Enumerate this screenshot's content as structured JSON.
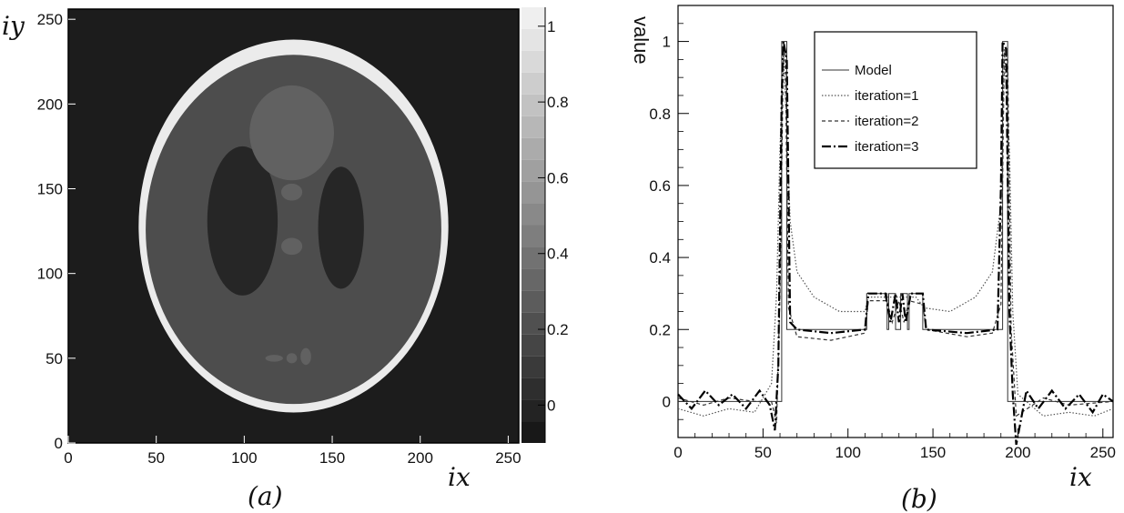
{
  "chart_data": [
    {
      "type": "heatmap",
      "panel_label": "(a)",
      "xlabel": "ix",
      "ylabel": "iy",
      "xlim": [
        0,
        256
      ],
      "ylim": [
        0,
        256
      ],
      "x_ticks": [
        "0",
        "50",
        "100",
        "150",
        "200",
        "250"
      ],
      "y_ticks": [
        "0",
        "50",
        "100",
        "150",
        "200",
        "250"
      ],
      "colorbar": {
        "range": [
          -0.1,
          1.05
        ],
        "ticks": [
          "0",
          "0.2",
          "0.4",
          "0.6",
          "0.8",
          "1"
        ],
        "levels": 20
      },
      "colormap": "grayscale",
      "features": [
        {
          "name": "outer ellipse (skull)",
          "center": [
            128,
            128
          ],
          "semi_axes": [
            88,
            110
          ],
          "value": 1.0
        },
        {
          "name": "brain interior",
          "center": [
            128,
            126
          ],
          "semi_axes": [
            84,
            103
          ],
          "value": 0.2
        },
        {
          "name": "left ellipse",
          "center": [
            99,
            131
          ],
          "semi_axes": [
            20,
            44
          ],
          "value": 0.0
        },
        {
          "name": "right ellipse",
          "center": [
            155,
            127
          ],
          "semi_axes": [
            13,
            36
          ],
          "value": 0.0
        },
        {
          "name": "top disc",
          "center": [
            127,
            183
          ],
          "semi_axes": [
            24,
            28
          ],
          "value": 0.3
        },
        {
          "name": "small spot 1",
          "center": [
            127,
            148
          ],
          "semi_axes": [
            6,
            5
          ],
          "value": 0.3
        },
        {
          "name": "small spot 2",
          "center": [
            127,
            116
          ],
          "semi_axes": [
            6,
            5
          ],
          "value": 0.3
        },
        {
          "name": "bottom spot 1",
          "center": [
            117,
            50
          ],
          "semi_axes": [
            5,
            2
          ],
          "value": 0.3
        },
        {
          "name": "bottom spot 2",
          "center": [
            127,
            50
          ],
          "semi_axes": [
            3,
            3
          ],
          "value": 0.3
        },
        {
          "name": "bottom spot 3",
          "center": [
            135,
            51
          ],
          "semi_axes": [
            3,
            5
          ],
          "value": 0.3
        }
      ]
    },
    {
      "type": "line",
      "panel_label": "(b)",
      "xlabel": "ix",
      "ylabel": "value",
      "xlim": [
        0,
        256
      ],
      "ylim": [
        -0.1,
        1.1
      ],
      "x_ticks": [
        "0",
        "50",
        "100",
        "150",
        "200",
        "250"
      ],
      "y_ticks": [
        "0",
        "0.2",
        "0.4",
        "0.6",
        "0.8",
        "1"
      ],
      "legend_position": "top-center",
      "series": [
        {
          "name": "Model",
          "style": "solid-thin",
          "points": [
            [
              0,
              0
            ],
            [
              61,
              0
            ],
            [
              61,
              1
            ],
            [
              64,
              1
            ],
            [
              64,
              0.2
            ],
            [
              111,
              0.2
            ],
            [
              111,
              0.3
            ],
            [
              123,
              0.3
            ],
            [
              123,
              0.2
            ],
            [
              124,
              0.2
            ],
            [
              124,
              0.3
            ],
            [
              128,
              0.3
            ],
            [
              128,
              0.2
            ],
            [
              131,
              0.2
            ],
            [
              131,
              0.3
            ],
            [
              135,
              0.3
            ],
            [
              135,
              0.2
            ],
            [
              136,
              0.2
            ],
            [
              136,
              0.3
            ],
            [
              144,
              0.3
            ],
            [
              144,
              0.2
            ],
            [
              191,
              0.2
            ],
            [
              191,
              1
            ],
            [
              194,
              1
            ],
            [
              194,
              0
            ],
            [
              256,
              0
            ]
          ]
        },
        {
          "name": "iteration=1",
          "style": "dotted",
          "points": [
            [
              0,
              -0.02
            ],
            [
              15,
              -0.04
            ],
            [
              30,
              -0.02
            ],
            [
              45,
              -0.03
            ],
            [
              55,
              0.05
            ],
            [
              58,
              0.3
            ],
            [
              60,
              0.7
            ],
            [
              62,
              0.98
            ],
            [
              64,
              0.75
            ],
            [
              66,
              0.5
            ],
            [
              70,
              0.36
            ],
            [
              80,
              0.29
            ],
            [
              95,
              0.25
            ],
            [
              110,
              0.25
            ],
            [
              112,
              0.29
            ],
            [
              125,
              0.29
            ],
            [
              140,
              0.29
            ],
            [
              145,
              0.26
            ],
            [
              160,
              0.25
            ],
            [
              175,
              0.29
            ],
            [
              185,
              0.36
            ],
            [
              190,
              0.55
            ],
            [
              192,
              0.98
            ],
            [
              195,
              0.7
            ],
            [
              197,
              0.25
            ],
            [
              200,
              0.02
            ],
            [
              215,
              -0.04
            ],
            [
              230,
              -0.03
            ],
            [
              245,
              -0.04
            ],
            [
              256,
              -0.02
            ]
          ]
        },
        {
          "name": "iteration=2",
          "style": "dashed",
          "points": [
            [
              0,
              0.01
            ],
            [
              15,
              -0.01
            ],
            [
              30,
              0.01
            ],
            [
              45,
              0.0
            ],
            [
              55,
              0.0
            ],
            [
              58,
              -0.06
            ],
            [
              60,
              0.3
            ],
            [
              62,
              0.97
            ],
            [
              63,
              0.98
            ],
            [
              65,
              0.26
            ],
            [
              70,
              0.18
            ],
            [
              90,
              0.17
            ],
            [
              110,
              0.19
            ],
            [
              112,
              0.28
            ],
            [
              123,
              0.28
            ],
            [
              126,
              0.22
            ],
            [
              130,
              0.28
            ],
            [
              133,
              0.22
            ],
            [
              136,
              0.28
            ],
            [
              144,
              0.27
            ],
            [
              146,
              0.2
            ],
            [
              170,
              0.18
            ],
            [
              185,
              0.19
            ],
            [
              190,
              0.27
            ],
            [
              192,
              0.97
            ],
            [
              194,
              0.95
            ],
            [
              196,
              0.2
            ],
            [
              199,
              -0.04
            ],
            [
              215,
              0.01
            ],
            [
              230,
              -0.01
            ],
            [
              256,
              0.0
            ]
          ]
        },
        {
          "name": "iteration=3",
          "style": "dash-dot-thick",
          "points": [
            [
              0,
              0.02
            ],
            [
              8,
              -0.02
            ],
            [
              16,
              0.03
            ],
            [
              24,
              -0.01
            ],
            [
              32,
              0.02
            ],
            [
              40,
              -0.02
            ],
            [
              48,
              0.03
            ],
            [
              54,
              -0.01
            ],
            [
              57,
              -0.08
            ],
            [
              59,
              0.1
            ],
            [
              61,
              0.85
            ],
            [
              62,
              1.0
            ],
            [
              64,
              0.95
            ],
            [
              66,
              0.22
            ],
            [
              70,
              0.2
            ],
            [
              90,
              0.19
            ],
            [
              110,
              0.2
            ],
            [
              112,
              0.3
            ],
            [
              122,
              0.3
            ],
            [
              125,
              0.22
            ],
            [
              128,
              0.3
            ],
            [
              130,
              0.22
            ],
            [
              132,
              0.3
            ],
            [
              134,
              0.22
            ],
            [
              137,
              0.3
            ],
            [
              144,
              0.3
            ],
            [
              146,
              0.2
            ],
            [
              170,
              0.19
            ],
            [
              188,
              0.2
            ],
            [
              190,
              0.6
            ],
            [
              191,
              1.0
            ],
            [
              193,
              0.98
            ],
            [
              195,
              0.25
            ],
            [
              197,
              0.02
            ],
            [
              199,
              -0.12
            ],
            [
              205,
              0.03
            ],
            [
              212,
              -0.02
            ],
            [
              220,
              0.03
            ],
            [
              228,
              -0.02
            ],
            [
              236,
              0.02
            ],
            [
              244,
              -0.03
            ],
            [
              250,
              0.02
            ],
            [
              256,
              0.0
            ]
          ]
        }
      ]
    }
  ]
}
